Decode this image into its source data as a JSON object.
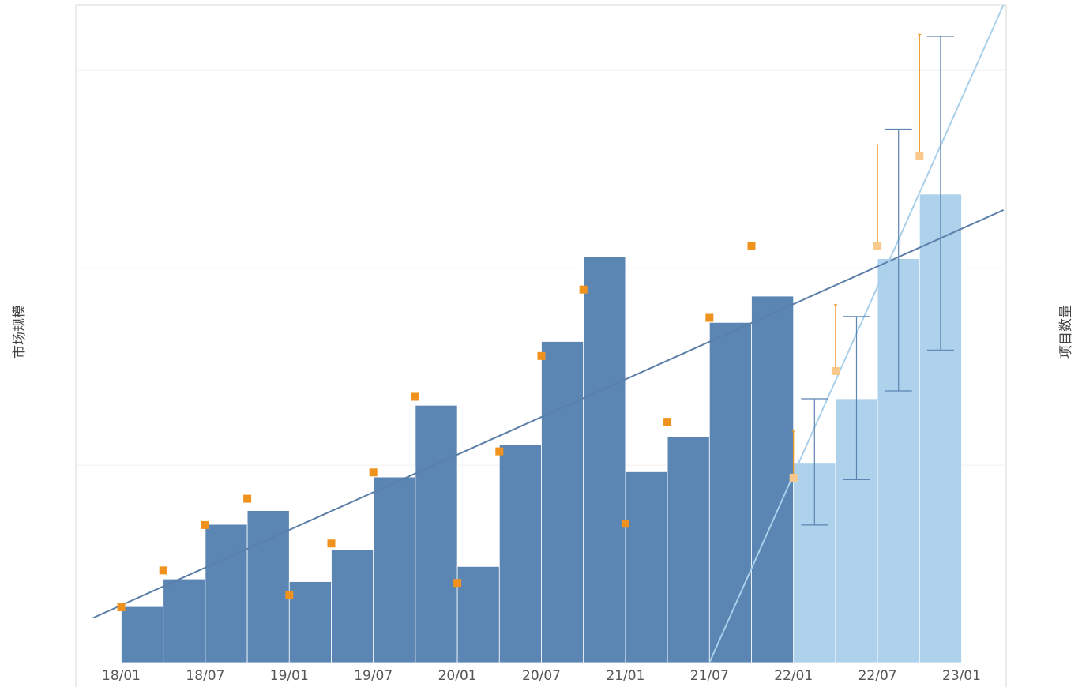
{
  "chart_data": {
    "type": "bar",
    "title": "",
    "y_left_label": "市场规模",
    "y_right_label": "项目数量",
    "x_tick_labels": [
      "18/01",
      "18/07",
      "19/01",
      "19/07",
      "20/01",
      "20/07",
      "21/01",
      "21/07",
      "22/01",
      "22/07",
      "23/01"
    ],
    "ylim_left": [
      0,
      100
    ],
    "ylim_right": [
      0,
      100
    ],
    "grid": true,
    "bars": {
      "periods": [
        "18/01",
        "18/04",
        "18/07",
        "18/10",
        "19/01",
        "19/04",
        "19/07",
        "19/10",
        "20/01",
        "20/04",
        "20/07",
        "20/10",
        "21/01",
        "21/04",
        "21/07",
        "21/10",
        "22/01",
        "22/04",
        "22/07",
        "22/10"
      ],
      "values": [
        8.5,
        12.7,
        21.0,
        23.1,
        12.3,
        17.1,
        28.2,
        39.1,
        14.6,
        33.1,
        48.8,
        61.7,
        29.0,
        34.3,
        51.7,
        55.7,
        30.4,
        40.1,
        61.4,
        71.2
      ],
      "forecast": [
        false,
        false,
        false,
        false,
        false,
        false,
        false,
        false,
        false,
        false,
        false,
        false,
        false,
        false,
        false,
        false,
        true,
        true,
        true,
        true
      ],
      "error_low": [
        null,
        null,
        null,
        null,
        null,
        null,
        null,
        null,
        null,
        null,
        null,
        null,
        null,
        null,
        null,
        null,
        20.9,
        27.8,
        41.3,
        47.5
      ],
      "error_high": [
        null,
        null,
        null,
        null,
        null,
        null,
        null,
        null,
        null,
        null,
        null,
        null,
        null,
        null,
        null,
        null,
        40.1,
        52.6,
        81.1,
        95.2
      ],
      "color_actual": "#5b85b3",
      "color_forecast": "#aed2ec"
    },
    "points": {
      "values": [
        8.4,
        14.0,
        20.9,
        24.9,
        10.3,
        18.1,
        28.9,
        40.4,
        12.1,
        32.1,
        46.6,
        56.7,
        21.1,
        36.6,
        52.4,
        63.3,
        28.1,
        44.3,
        63.3,
        77.0
      ],
      "error_high": [
        null,
        null,
        null,
        null,
        null,
        null,
        null,
        null,
        null,
        null,
        null,
        null,
        null,
        null,
        null,
        null,
        35.2,
        54.4,
        78.7,
        95.5
      ],
      "color_actual": "#f0921e",
      "color_forecast": "#f8c98b"
    },
    "trendline_actual": {
      "start": {
        "x": "17/11",
        "y": 6.8
      },
      "end": {
        "x": "23/04",
        "y": 68.8
      },
      "color": "#5b7fa8"
    },
    "trendline_forecast": {
      "start": {
        "x": "21/07",
        "y": 0
      },
      "end": {
        "x": "23/04",
        "y": 100
      },
      "color": "#a9d0ea"
    }
  }
}
